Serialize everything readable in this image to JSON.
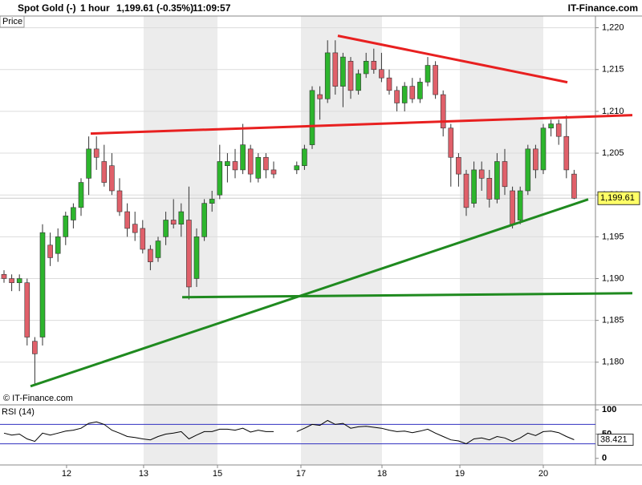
{
  "header": {
    "instrument": "Spot Gold (-)",
    "interval": "1 hour",
    "quote": "1,199.61 (-0.35%)",
    "time": "11:09:57",
    "brand": "IT-Finance.com"
  },
  "chart_data": [
    {
      "type": "candlestick",
      "y_label": "Price",
      "watermark": "© IT-Finance.com",
      "up_color": "#2db52d",
      "down_color": "#e0606a",
      "grid": true,
      "xlim": [
        -0.52,
        76.77
      ],
      "ylim": [
        1174.9,
        1221.4
      ],
      "yticks": [
        {
          "value": 1180,
          "label": "1,180"
        },
        {
          "value": 1185,
          "label": "1,185"
        },
        {
          "value": 1190,
          "label": "1,190"
        },
        {
          "value": 1195,
          "label": "1,195"
        },
        {
          "value": 1200,
          "label": "1,200"
        },
        {
          "value": 1205,
          "label": "1,205"
        },
        {
          "value": 1210,
          "label": "1,210"
        },
        {
          "value": 1215,
          "label": "1,215"
        },
        {
          "value": 1220,
          "label": "1,220"
        }
      ],
      "current_price": {
        "value": 1199.61,
        "label": "1,199.61"
      },
      "candles": [
        [
          1190.5,
          1191,
          1189.5,
          1190
        ],
        [
          1190,
          1190.5,
          1188.5,
          1189.5
        ],
        [
          1189.5,
          1190.5,
          1188.5,
          1190
        ],
        [
          1189.5,
          1190,
          1182,
          1183
        ],
        [
          1182.5,
          1183,
          1177.3,
          1181
        ],
        [
          1183,
          1196.5,
          1182,
          1195.5
        ],
        [
          1194,
          1195.5,
          1191.5,
          1192.5
        ],
        [
          1193,
          1196,
          1192,
          1195
        ],
        [
          1195,
          1198,
          1194,
          1197.5
        ],
        [
          1197,
          1199,
          1196,
          1198.5
        ],
        [
          1198.5,
          1202,
          1197.5,
          1201.5
        ],
        [
          1202,
          1207,
          1200,
          1205.5
        ],
        [
          1205.5,
          1207,
          1203,
          1204.5
        ],
        [
          1204,
          1206,
          1201,
          1201.5
        ],
        [
          1203.5,
          1205,
          1200,
          1200.5
        ],
        [
          1200.5,
          1202,
          1197.5,
          1198
        ],
        [
          1198,
          1199,
          1195,
          1196
        ],
        [
          1196.5,
          1198,
          1194.5,
          1195.5
        ],
        [
          1196,
          1197,
          1193,
          1193.5
        ],
        [
          1193.5,
          1194,
          1191,
          1192
        ],
        [
          1192.5,
          1195,
          1192,
          1194.5
        ],
        [
          1195,
          1198,
          1194,
          1197
        ],
        [
          1197,
          1199.5,
          1196,
          1196.5
        ],
        [
          1196.5,
          1199,
          1195,
          1198
        ],
        [
          1197,
          1201,
          1187.5,
          1189
        ],
        [
          1190,
          1196,
          1189,
          1195
        ],
        [
          1195,
          1199.5,
          1194.5,
          1199
        ],
        [
          1199,
          1200.5,
          1198,
          1199.5
        ],
        [
          1200,
          1206,
          1199.5,
          1204
        ],
        [
          1203.5,
          1205,
          1201.5,
          1204
        ],
        [
          1204,
          1205.5,
          1202,
          1203
        ],
        [
          1203,
          1208.5,
          1202.5,
          1206
        ],
        [
          1205.5,
          1206,
          1201.5,
          1202.5
        ],
        [
          1202,
          1205,
          1201.5,
          1204.5
        ],
        [
          1204.5,
          1205,
          1202,
          1203
        ],
        [
          1203,
          1204,
          1202,
          1202.5
        ],
        null,
        null,
        [
          1203,
          1204,
          1202.5,
          1203.5
        ],
        [
          1203.5,
          1206,
          1203,
          1205.5
        ],
        [
          1206,
          1213,
          1205.5,
          1212.5
        ],
        [
          1212,
          1213,
          1209,
          1211.5
        ],
        [
          1211.5,
          1218.5,
          1211,
          1217
        ],
        [
          1217,
          1218.5,
          1212,
          1213
        ],
        [
          1213,
          1217,
          1210.5,
          1216.5
        ],
        [
          1216,
          1216.5,
          1211.5,
          1212.5
        ],
        [
          1212.5,
          1215,
          1212,
          1214.5
        ],
        [
          1214.5,
          1217,
          1214,
          1216
        ],
        [
          1216,
          1217.5,
          1214.5,
          1215
        ],
        [
          1215,
          1217,
          1213.5,
          1214
        ],
        [
          1214,
          1215,
          1212,
          1212.5
        ],
        [
          1212.5,
          1213,
          1210,
          1211
        ],
        [
          1211,
          1213.5,
          1210,
          1213
        ],
        [
          1213,
          1214,
          1211,
          1211.5
        ],
        [
          1211.5,
          1214,
          1211,
          1213.5
        ],
        [
          1213.5,
          1216.5,
          1213,
          1215.5
        ],
        [
          1215.5,
          1216,
          1211.5,
          1212
        ],
        [
          1212,
          1212.5,
          1207,
          1208
        ],
        [
          1208,
          1208.5,
          1201,
          1204.5
        ],
        [
          1204.5,
          1205,
          1201,
          1202.5
        ],
        [
          1202.5,
          1203,
          1197.5,
          1198.5
        ],
        [
          1199,
          1204,
          1198.5,
          1203
        ],
        [
          1203,
          1204,
          1200.5,
          1202
        ],
        [
          1202,
          1203,
          1198.5,
          1199.5
        ],
        [
          1199.5,
          1205,
          1199,
          1204
        ],
        [
          1204,
          1205.5,
          1200,
          1201
        ],
        [
          1200.5,
          1201,
          1196,
          1196.5
        ],
        [
          1197,
          1201,
          1196.5,
          1200.5
        ],
        [
          1200.5,
          1206,
          1200,
          1205.5
        ],
        [
          1205.5,
          1206,
          1202,
          1203
        ],
        [
          1203,
          1208.5,
          1202.5,
          1208
        ],
        [
          1208,
          1209,
          1207,
          1208.5
        ],
        [
          1208.5,
          1209,
          1206,
          1207
        ],
        [
          1207,
          1209.5,
          1202,
          1203
        ],
        [
          1202.5,
          1203,
          1199.5,
          1199.61
        ]
      ],
      "trendlines": [
        {
          "color": "#e82020",
          "points": [
            [
              43.33,
              1219.04
            ],
            [
              73.13,
              1213.48
            ]
          ]
        },
        {
          "color": "#e82020",
          "points": [
            [
              11.25,
              1207.34
            ],
            [
              81.56,
              1209.55
            ]
          ]
        },
        {
          "color": "#1f8a1f",
          "points": [
            [
              3.44,
              1177.12
            ],
            [
              75.83,
              1199.47
            ]
          ]
        },
        {
          "color": "#1f8a1f",
          "points": [
            [
              23.13,
              1187.77
            ],
            [
              81.56,
              1188.25
            ]
          ]
        }
      ]
    },
    {
      "type": "line",
      "title": "RSI (14)",
      "color": "#000000",
      "level_color": "#3030c0",
      "levels": [
        30,
        70
      ],
      "xlim": [
        -0.52,
        76.77
      ],
      "ylim": [
        -13.6,
        110.2
      ],
      "yticks": [
        0,
        50,
        100
      ],
      "current": 38.421,
      "xticks": [
        {
          "value": 8.12,
          "label": "12"
        },
        {
          "value": 18.12,
          "label": "13"
        },
        {
          "value": 27.71,
          "label": "15"
        },
        {
          "value": 38.54,
          "label": "17"
        },
        {
          "value": 49.06,
          "label": "18"
        },
        {
          "value": 59.17,
          "label": "19"
        },
        {
          "value": 70.0,
          "label": "20"
        }
      ],
      "values": [
        52,
        48,
        50,
        40,
        35,
        52,
        48,
        52,
        56,
        58,
        62,
        72,
        75,
        70,
        58,
        52,
        45,
        43,
        40,
        38,
        45,
        50,
        52,
        55,
        40,
        48,
        55,
        55,
        60,
        60,
        58,
        62,
        54,
        58,
        55,
        55,
        null,
        null,
        55,
        62,
        70,
        68,
        78,
        70,
        72,
        62,
        65,
        66,
        64,
        62,
        58,
        55,
        56,
        53,
        56,
        60,
        52,
        45,
        38,
        36,
        30,
        40,
        42,
        38,
        45,
        42,
        35,
        42,
        52,
        47,
        55,
        56,
        53,
        45,
        38.421
      ]
    }
  ]
}
